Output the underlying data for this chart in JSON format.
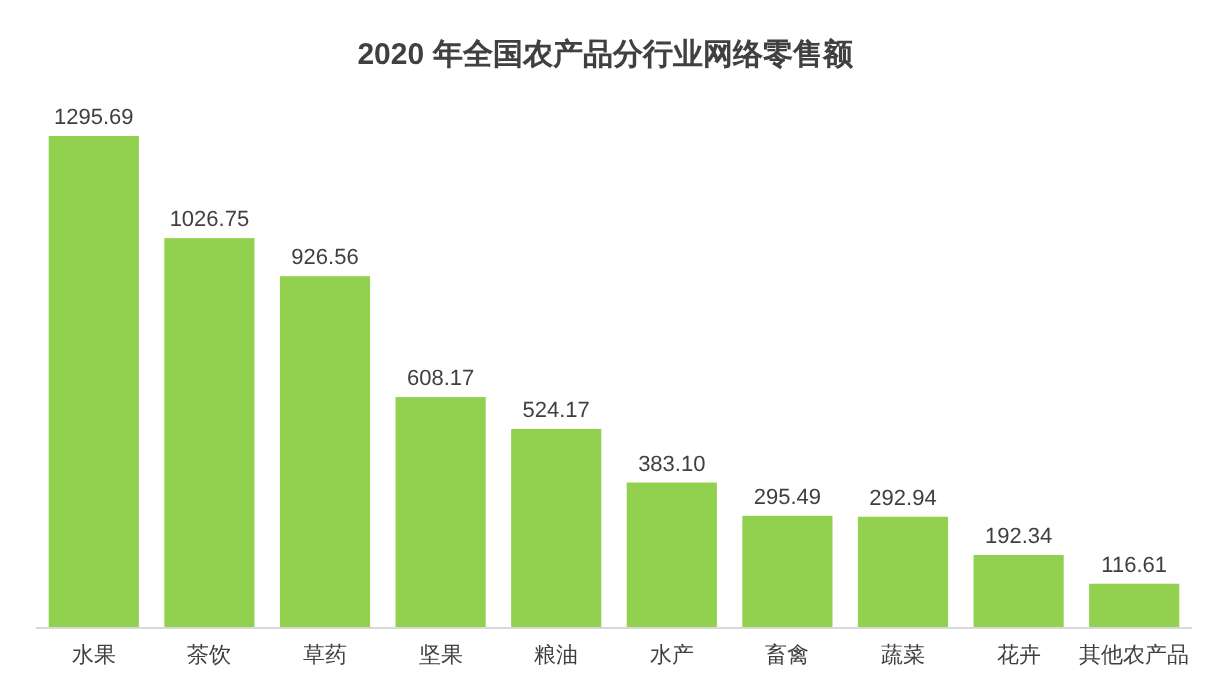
{
  "chart_data": {
    "type": "bar",
    "title": "2020 年全国农产品分行业网络零售额",
    "categories": [
      "水果",
      "茶饮",
      "草药",
      "坚果",
      "粮油",
      "水产",
      "畜禽",
      "蔬菜",
      "花卉",
      "其他农产品"
    ],
    "values": [
      1295.69,
      1026.75,
      926.56,
      608.17,
      524.17,
      383.1,
      295.49,
      292.94,
      192.34,
      116.61
    ],
    "value_labels": [
      "1295.69",
      "1026.75",
      "926.56",
      "608.17",
      "524.17",
      "383.10",
      "295.49",
      "292.94",
      "192.34",
      "116.61"
    ],
    "color": "#92d050"
  }
}
